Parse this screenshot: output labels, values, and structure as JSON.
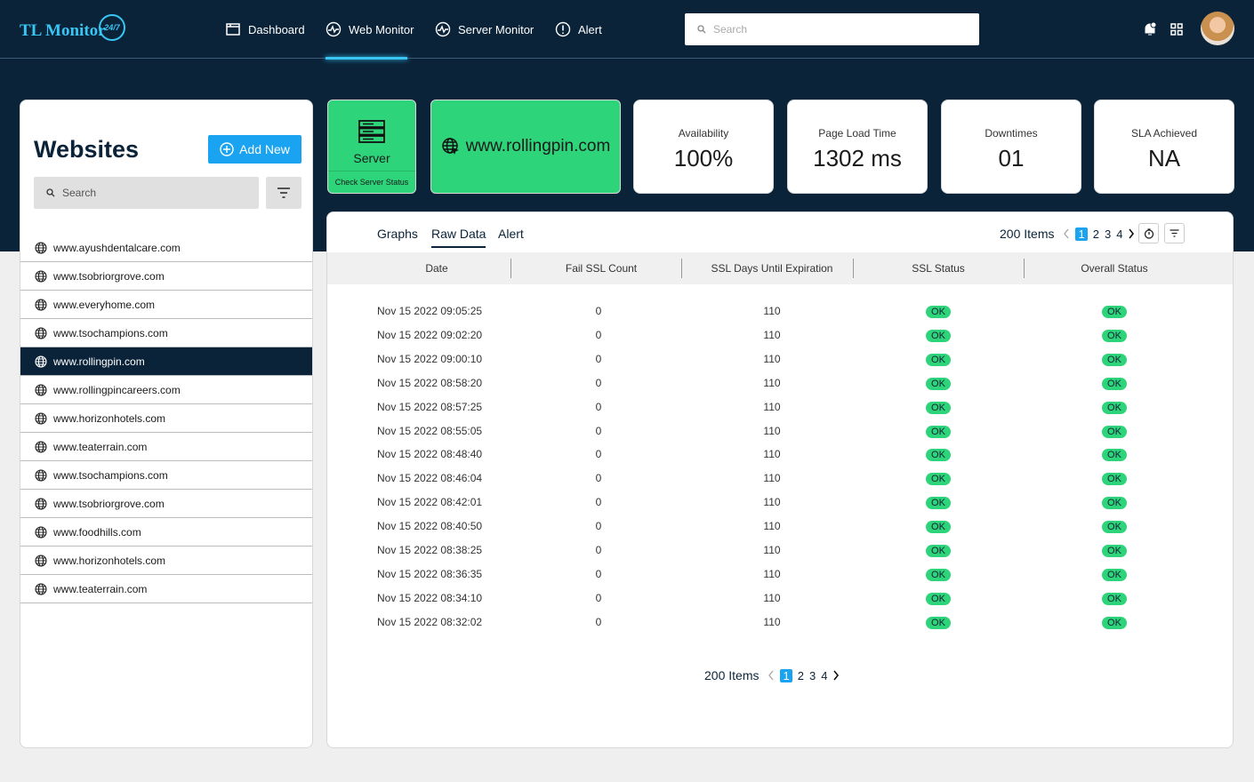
{
  "header": {
    "logo": "TL Monitor",
    "logo_badge": "24/7",
    "nav": [
      "Dashboard",
      "Web Monitor",
      "Server Monitor",
      "Alert"
    ],
    "active_nav": 1,
    "search_placeholder": "Search"
  },
  "sidebar": {
    "title": "Websites",
    "add_button": "Add New",
    "search_placeholder": "Search",
    "sites": [
      "www.ayushdentalcare.com",
      "www.tsobriorgrove.com",
      "www.everyhome.com",
      "www.tsochampions.com",
      "www.rollingpin.com",
      "www.rollingpincareers.com",
      "www.horizonhotels.com",
      "www.teaterrain.com",
      "www.tsochampions.com",
      "www.tsobriorgrove.com",
      "www.foodhills.com",
      "www.horizonhotels.com",
      "www.teaterrain.com"
    ],
    "selected": 4
  },
  "server_card": {
    "label": "Server",
    "action": "Check Server Status"
  },
  "site_card": {
    "url": "www.rollingpin.com"
  },
  "stats": [
    {
      "label": "Availability",
      "value": "100%"
    },
    {
      "label": "Page Load Time",
      "value": "1302 ms"
    },
    {
      "label": "Downtimes",
      "value": "01"
    },
    {
      "label": "SLA Achieved",
      "value": "NA"
    }
  ],
  "table": {
    "tabs": [
      "Graphs",
      "Raw Data",
      "Alert"
    ],
    "active_tab": 1,
    "items": "200 Items",
    "pages": [
      1,
      2,
      3,
      4
    ],
    "current_page": 0,
    "columns": [
      "Date",
      "Fail SSL Count",
      "SSL Days Until Expiration",
      "SSL Status",
      "Overall Status"
    ],
    "rows": [
      [
        "Nov 15 2022  09:05:25",
        "0",
        "110",
        "OK",
        "OK"
      ],
      [
        "Nov 15 2022  09:02:20",
        "0",
        "110",
        "OK",
        "OK"
      ],
      [
        "Nov 15 2022  09:00:10",
        "0",
        "110",
        "OK",
        "OK"
      ],
      [
        "Nov 15 2022  08:58:20",
        "0",
        "110",
        "OK",
        "OK"
      ],
      [
        "Nov 15 2022  08:57:25",
        "0",
        "110",
        "OK",
        "OK"
      ],
      [
        "Nov 15 2022  08:55:05",
        "0",
        "110",
        "OK",
        "OK"
      ],
      [
        "Nov 15 2022  08:48:40",
        "0",
        "110",
        "OK",
        "OK"
      ],
      [
        "Nov 15 2022  08:46:04",
        "0",
        "110",
        "OK",
        "OK"
      ],
      [
        "Nov 15 2022  08:42:01",
        "0",
        "110",
        "OK",
        "OK"
      ],
      [
        "Nov 15 2022  08:40:50",
        "0",
        "110",
        "OK",
        "OK"
      ],
      [
        "Nov 15 2022  08:38:25",
        "0",
        "110",
        "OK",
        "OK"
      ],
      [
        "Nov 15 2022  08:36:35",
        "0",
        "110",
        "OK",
        "OK"
      ],
      [
        "Nov 15 2022  08:34:10",
        "0",
        "110",
        "OK",
        "OK"
      ],
      [
        "Nov 15 2022  08:32:02",
        "0",
        "110",
        "OK",
        "OK"
      ]
    ]
  }
}
